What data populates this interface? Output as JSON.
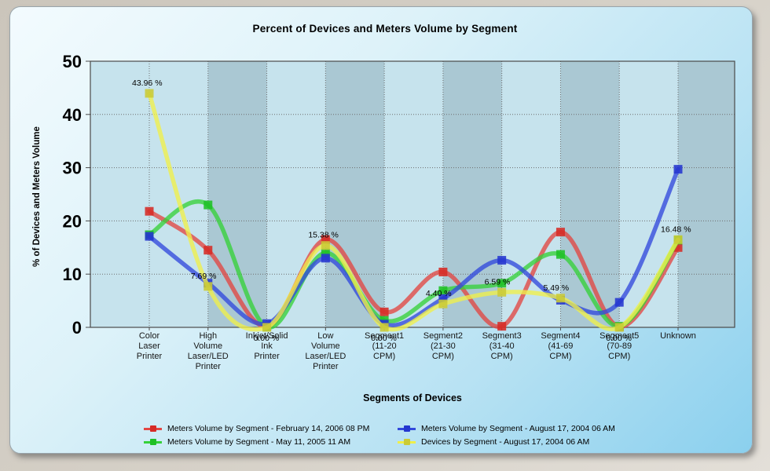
{
  "chart_data": {
    "type": "line",
    "title": "Percent of Devices and Meters Volume by Segment",
    "ylabel": "% of Devices and Meters Volume",
    "xlabel": "Segments of Devices",
    "ylim": [
      0,
      50
    ],
    "y_ticks": [
      0,
      10,
      20,
      30,
      40,
      50
    ],
    "grid": "dotted-both-axes",
    "legend_position": "bottom-two-columns",
    "categories": [
      "Color Laser Printer",
      "High Volume Laser/LED Printer",
      "Inkjet/Solid Ink Printer",
      "Low Volume Laser/LED Printer",
      "Segment1 (11-20 CPM)",
      "Segment2 (21-30 CPM)",
      "Segment3 (31-40 CPM)",
      "Segment4 (41-69 CPM)",
      "Segment5 (70-89 CPM)",
      "Unknown"
    ],
    "category_label_lines": [
      [
        "Color",
        "Laser",
        "Printer"
      ],
      [
        "High",
        "Volume",
        "Laser/LED",
        "Printer"
      ],
      [
        "Inkjet/Solid",
        "Ink",
        "Printer"
      ],
      [
        "Low",
        "Volume",
        "Laser/LED",
        "Printer"
      ],
      [
        "Segment1",
        "(11-20",
        "CPM)"
      ],
      [
        "Segment2",
        "(21-30",
        "CPM)"
      ],
      [
        "Segment3",
        "(31-40",
        "CPM)"
      ],
      [
        "Segment4",
        "(41-69",
        "CPM)"
      ],
      [
        "Segment5",
        "(70-89",
        "CPM)"
      ],
      [
        "Unknown"
      ]
    ],
    "series": [
      {
        "name": "Meters Volume by Segment - February 14, 2006 08 PM",
        "color": "#e24743",
        "marker_color": "#d62b26",
        "values": [
          21.8,
          14.5,
          0.1,
          16.5,
          2.9,
          10.4,
          0.2,
          17.9,
          0.1,
          15.0
        ]
      },
      {
        "name": "Meters Volume by Segment - May 11, 2005 11 AM",
        "color": "#36d13a",
        "marker_color": "#1fc026",
        "values": [
          17.4,
          23.0,
          0.1,
          14.0,
          1.3,
          6.9,
          8.3,
          13.7,
          0.2,
          16.4
        ]
      },
      {
        "name": "Meters Volume by Segment - August 17, 2004 06 AM",
        "color": "#3249dc",
        "marker_color": "#2436cf",
        "values": [
          17.1,
          8.3,
          0.7,
          13.0,
          0.6,
          5.4,
          12.6,
          5.1,
          4.7,
          29.7
        ]
      },
      {
        "name": "Devices by Segment - August 17, 2004 06 AM",
        "color": "#efef4a",
        "marker_color": "#cbcb36",
        "values": [
          43.96,
          7.69,
          0.0,
          15.38,
          0.0,
          4.4,
          6.59,
          5.49,
          0.0,
          16.48
        ],
        "point_labels": [
          "43.96 %",
          "7.69 %",
          "0.00 %",
          "15.38 %",
          "0.00 %",
          "4.40 %",
          "6.59 %",
          "5.49 %",
          "0.00 %",
          "16.48 %"
        ]
      }
    ]
  },
  "colors": {
    "band_light": "#c6e3ed",
    "band_dark": "#aac8d3",
    "plot_border": "#4a4a4a",
    "grid": "#6e6e6e",
    "tick_text": "#000000",
    "category_text": "#161616",
    "point_label_text": "#000000"
  }
}
